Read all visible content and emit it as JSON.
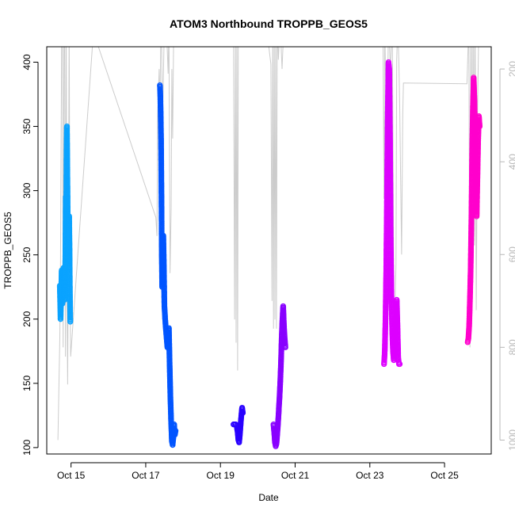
{
  "chart_data": {
    "type": "scatter",
    "title": "ATOM3 Northbound TROPPB_GEOS5",
    "xlabel": "Date",
    "ylabel": "TROPPB_GEOS5",
    "x_tick_labels": [
      "Oct 15",
      "Oct 17",
      "Oct 19",
      "Oct 21",
      "Oct 23",
      "Oct 25"
    ],
    "x_tick_days": [
      15,
      17,
      19,
      21,
      23,
      25
    ],
    "xlim_days": [
      14.35,
      26.25
    ],
    "ylim": [
      95,
      412
    ],
    "y_ticks": [
      100,
      150,
      200,
      250,
      300,
      350,
      400
    ],
    "right_axis": {
      "label": "",
      "ticks": [
        200,
        400,
        600,
        800,
        1000
      ],
      "range_top_to_bottom": [
        152,
        1030
      ],
      "color": "#b8b8b8"
    },
    "grid": false,
    "series": [
      {
        "color": "#0aa3ff",
        "points": [
          [
            14.7,
            226
          ],
          [
            14.72,
            200
          ],
          [
            14.75,
            238
          ],
          [
            14.77,
            212
          ],
          [
            14.78,
            225
          ],
          [
            14.8,
            240
          ],
          [
            14.82,
            230
          ],
          [
            14.83,
            215
          ],
          [
            14.85,
            250
          ],
          [
            14.86,
            295
          ],
          [
            14.87,
            270
          ],
          [
            14.88,
            330
          ],
          [
            14.89,
            350
          ],
          [
            14.9,
            320
          ],
          [
            14.91,
            285
          ],
          [
            14.92,
            252
          ],
          [
            14.93,
            245
          ],
          [
            14.94,
            275
          ],
          [
            14.95,
            280
          ],
          [
            14.96,
            255
          ],
          [
            14.97,
            220
          ],
          [
            14.98,
            198
          ]
        ]
      },
      {
        "color": "#0055ff",
        "points": [
          [
            17.38,
            382
          ],
          [
            17.39,
            375
          ],
          [
            17.4,
            360
          ],
          [
            17.41,
            340
          ],
          [
            17.42,
            300
          ],
          [
            17.43,
            250
          ],
          [
            17.44,
            225
          ],
          [
            17.45,
            228
          ],
          [
            17.46,
            240
          ],
          [
            17.47,
            265
          ],
          [
            17.48,
            250
          ],
          [
            17.49,
            232
          ],
          [
            17.5,
            210
          ],
          [
            17.52,
            200
          ],
          [
            17.54,
            192
          ],
          [
            17.56,
            185
          ],
          [
            17.58,
            178
          ],
          [
            17.6,
            190
          ],
          [
            17.62,
            193
          ],
          [
            17.64,
            165
          ],
          [
            17.66,
            140
          ],
          [
            17.68,
            120
          ],
          [
            17.7,
            105
          ],
          [
            17.72,
            102
          ],
          [
            17.74,
            108
          ],
          [
            17.76,
            118
          ],
          [
            17.78,
            110
          ],
          [
            17.8,
            113
          ]
        ]
      },
      {
        "color": "#2800ff",
        "points": [
          [
            19.35,
            118
          ],
          [
            19.38,
            118
          ],
          [
            19.41,
            118
          ],
          [
            19.44,
            116
          ],
          [
            19.46,
            112
          ],
          [
            19.48,
            106
          ],
          [
            19.5,
            104
          ],
          [
            19.52,
            110
          ],
          [
            19.54,
            118
          ],
          [
            19.56,
            125
          ],
          [
            19.58,
            131
          ],
          [
            19.6,
            127
          ]
        ]
      },
      {
        "color": "#8800ff",
        "points": [
          [
            20.42,
            118
          ],
          [
            20.44,
            112
          ],
          [
            20.46,
            104
          ],
          [
            20.48,
            101
          ],
          [
            20.5,
            103
          ],
          [
            20.52,
            110
          ],
          [
            20.54,
            118
          ],
          [
            20.56,
            128
          ],
          [
            20.58,
            138
          ],
          [
            20.6,
            150
          ],
          [
            20.62,
            165
          ],
          [
            20.64,
            185
          ],
          [
            20.66,
            200
          ],
          [
            20.68,
            210
          ],
          [
            20.7,
            195
          ],
          [
            20.72,
            185
          ],
          [
            20.74,
            178
          ]
        ]
      },
      {
        "color": "#dd00ff",
        "points": [
          [
            23.38,
            165
          ],
          [
            23.4,
            175
          ],
          [
            23.42,
            200
          ],
          [
            23.44,
            240
          ],
          [
            23.46,
            300
          ],
          [
            23.48,
            360
          ],
          [
            23.5,
            400
          ],
          [
            23.52,
            395
          ],
          [
            23.54,
            340
          ],
          [
            23.56,
            260
          ],
          [
            23.58,
            215
          ],
          [
            23.6,
            190
          ],
          [
            23.62,
            175
          ],
          [
            23.64,
            168
          ],
          [
            23.66,
            175
          ],
          [
            23.68,
            182
          ],
          [
            23.7,
            200
          ],
          [
            23.72,
            215
          ],
          [
            23.74,
            195
          ],
          [
            23.76,
            170
          ],
          [
            23.78,
            165
          ],
          [
            23.8,
            165
          ]
        ]
      },
      {
        "color": "#ff00cc",
        "points": [
          [
            25.62,
            182
          ],
          [
            25.64,
            185
          ],
          [
            25.66,
            195
          ],
          [
            25.68,
            215
          ],
          [
            25.7,
            240
          ],
          [
            25.72,
            280
          ],
          [
            25.74,
            330
          ],
          [
            25.76,
            365
          ],
          [
            25.78,
            388
          ],
          [
            25.8,
            370
          ],
          [
            25.82,
            340
          ],
          [
            25.84,
            300
          ],
          [
            25.86,
            280
          ],
          [
            25.88,
            310
          ],
          [
            25.9,
            340
          ],
          [
            25.92,
            358
          ],
          [
            25.94,
            350
          ]
        ]
      }
    ],
    "pressure_trace": {
      "color": "#cccccc",
      "points": [
        [
          14.65,
          1000
        ],
        [
          14.7,
          780
        ],
        [
          14.72,
          610
        ],
        [
          14.75,
          100
        ],
        [
          14.77,
          100
        ],
        [
          14.79,
          800
        ],
        [
          14.81,
          150
        ],
        [
          14.83,
          100
        ],
        [
          14.85,
          820
        ],
        [
          14.87,
          60
        ],
        [
          14.89,
          700
        ],
        [
          14.91,
          880
        ],
        [
          14.93,
          580
        ],
        [
          14.95,
          100
        ],
        [
          14.97,
          600
        ],
        [
          14.99,
          820
        ],
        [
          15.6,
          120
        ],
        [
          17.27,
          520
        ],
        [
          17.3,
          560
        ],
        [
          17.32,
          300
        ],
        [
          17.36,
          200
        ],
        [
          17.38,
          300
        ],
        [
          17.4,
          150
        ],
        [
          17.42,
          100
        ],
        [
          17.45,
          320
        ],
        [
          17.5,
          100
        ],
        [
          17.55,
          100
        ],
        [
          17.6,
          210
        ],
        [
          17.62,
          100
        ],
        [
          17.65,
          640
        ],
        [
          17.68,
          500
        ],
        [
          17.7,
          200
        ],
        [
          17.72,
          350
        ],
        [
          17.75,
          100
        ],
        [
          17.78,
          100
        ],
        [
          17.8,
          100
        ],
        [
          17.9,
          120
        ],
        [
          19.3,
          120
        ],
        [
          19.35,
          100
        ],
        [
          19.38,
          740
        ],
        [
          19.4,
          100
        ],
        [
          19.42,
          790
        ],
        [
          19.44,
          100
        ],
        [
          19.46,
          850
        ],
        [
          19.48,
          100
        ],
        [
          19.5,
          100
        ],
        [
          19.6,
          120
        ],
        [
          20.25,
          120
        ],
        [
          20.35,
          190
        ],
        [
          20.38,
          700
        ],
        [
          20.4,
          100
        ],
        [
          20.42,
          760
        ],
        [
          20.44,
          100
        ],
        [
          20.46,
          740
        ],
        [
          20.48,
          100
        ],
        [
          20.5,
          760
        ],
        [
          20.52,
          100
        ],
        [
          20.55,
          180
        ],
        [
          20.6,
          100
        ],
        [
          20.65,
          200
        ],
        [
          20.7,
          100
        ],
        [
          20.8,
          120
        ],
        [
          23.3,
          120
        ],
        [
          23.35,
          100
        ],
        [
          23.38,
          480
        ],
        [
          23.4,
          100
        ],
        [
          23.45,
          380
        ],
        [
          23.5,
          100
        ],
        [
          23.55,
          200
        ],
        [
          23.6,
          100
        ],
        [
          23.65,
          800
        ],
        [
          23.7,
          620
        ],
        [
          23.72,
          180
        ],
        [
          23.75,
          100
        ],
        [
          23.78,
          200
        ],
        [
          23.8,
          280
        ],
        [
          23.85,
          600
        ],
        [
          23.88,
          300
        ],
        [
          23.9,
          230
        ],
        [
          25.6,
          232
        ],
        [
          25.65,
          100
        ],
        [
          25.68,
          800
        ],
        [
          25.7,
          100
        ],
        [
          25.72,
          600
        ],
        [
          25.74,
          100
        ],
        [
          25.76,
          650
        ],
        [
          25.78,
          100
        ],
        [
          25.8,
          580
        ],
        [
          25.82,
          100
        ],
        [
          25.85,
          720
        ],
        [
          25.88,
          300
        ],
        [
          25.9,
          200
        ],
        [
          25.92,
          100
        ]
      ]
    }
  }
}
